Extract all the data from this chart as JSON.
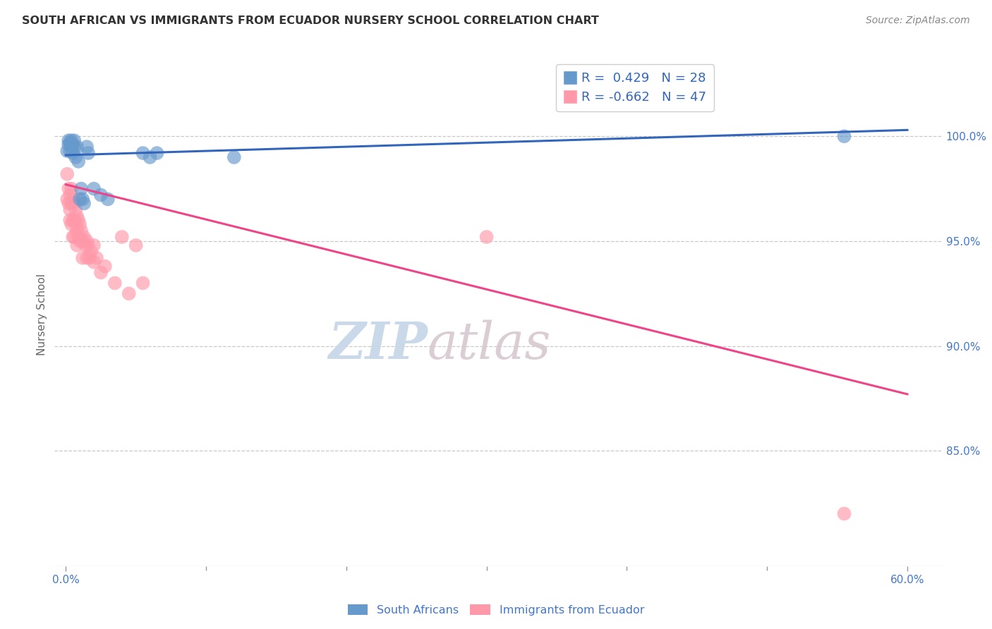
{
  "title": "SOUTH AFRICAN VS IMMIGRANTS FROM ECUADOR NURSERY SCHOOL CORRELATION CHART",
  "source": "Source: ZipAtlas.com",
  "ylabel": "Nursery School",
  "ytick_labels": [
    "100.0%",
    "95.0%",
    "90.0%",
    "85.0%"
  ],
  "ytick_values": [
    1.0,
    0.95,
    0.9,
    0.85
  ],
  "xlim": [
    -0.008,
    0.625
  ],
  "ylim": [
    0.795,
    1.035
  ],
  "legend_blue_r": "R =  0.429",
  "legend_blue_n": "N = 28",
  "legend_pink_r": "R = -0.662",
  "legend_pink_n": "N = 47",
  "blue_color": "#6699CC",
  "pink_color": "#FF99AA",
  "blue_line_color": "#3366BB",
  "pink_line_color": "#EE4488",
  "grid_color": "#C8C8C8",
  "title_color": "#333333",
  "source_color": "#888888",
  "axis_label_color": "#4477CC",
  "ylabel_color": "#666666",
  "blue_scatter_x": [
    0.001,
    0.002,
    0.002,
    0.003,
    0.003,
    0.004,
    0.004,
    0.005,
    0.005,
    0.006,
    0.006,
    0.007,
    0.008,
    0.009,
    0.01,
    0.011,
    0.012,
    0.013,
    0.015,
    0.016,
    0.02,
    0.025,
    0.03,
    0.055,
    0.06,
    0.065,
    0.12,
    0.555
  ],
  "blue_scatter_y": [
    0.993,
    0.996,
    0.998,
    0.993,
    0.997,
    0.995,
    0.998,
    0.996,
    0.992,
    0.995,
    0.998,
    0.99,
    0.995,
    0.988,
    0.97,
    0.975,
    0.97,
    0.968,
    0.995,
    0.992,
    0.975,
    0.972,
    0.97,
    0.992,
    0.99,
    0.992,
    0.99,
    1.0
  ],
  "pink_scatter_x": [
    0.001,
    0.001,
    0.002,
    0.002,
    0.003,
    0.003,
    0.003,
    0.004,
    0.004,
    0.004,
    0.005,
    0.005,
    0.005,
    0.006,
    0.006,
    0.006,
    0.007,
    0.007,
    0.008,
    0.008,
    0.008,
    0.009,
    0.009,
    0.01,
    0.01,
    0.011,
    0.012,
    0.012,
    0.013,
    0.014,
    0.015,
    0.015,
    0.016,
    0.017,
    0.018,
    0.02,
    0.02,
    0.022,
    0.025,
    0.028,
    0.035,
    0.04,
    0.045,
    0.05,
    0.055,
    0.3,
    0.555
  ],
  "pink_scatter_y": [
    0.982,
    0.97,
    0.975,
    0.968,
    0.972,
    0.965,
    0.96,
    0.975,
    0.968,
    0.958,
    0.97,
    0.96,
    0.952,
    0.968,
    0.96,
    0.952,
    0.965,
    0.958,
    0.962,
    0.955,
    0.948,
    0.96,
    0.952,
    0.958,
    0.95,
    0.955,
    0.95,
    0.942,
    0.952,
    0.948,
    0.95,
    0.942,
    0.948,
    0.942,
    0.945,
    0.948,
    0.94,
    0.942,
    0.935,
    0.938,
    0.93,
    0.952,
    0.925,
    0.948,
    0.93,
    0.952,
    0.82
  ],
  "blue_line_x": [
    0.0,
    0.6
  ],
  "blue_line_y": [
    0.991,
    1.003
  ],
  "pink_line_x": [
    0.0,
    0.6
  ],
  "pink_line_y": [
    0.977,
    0.877
  ],
  "background_color": "#FFFFFF"
}
